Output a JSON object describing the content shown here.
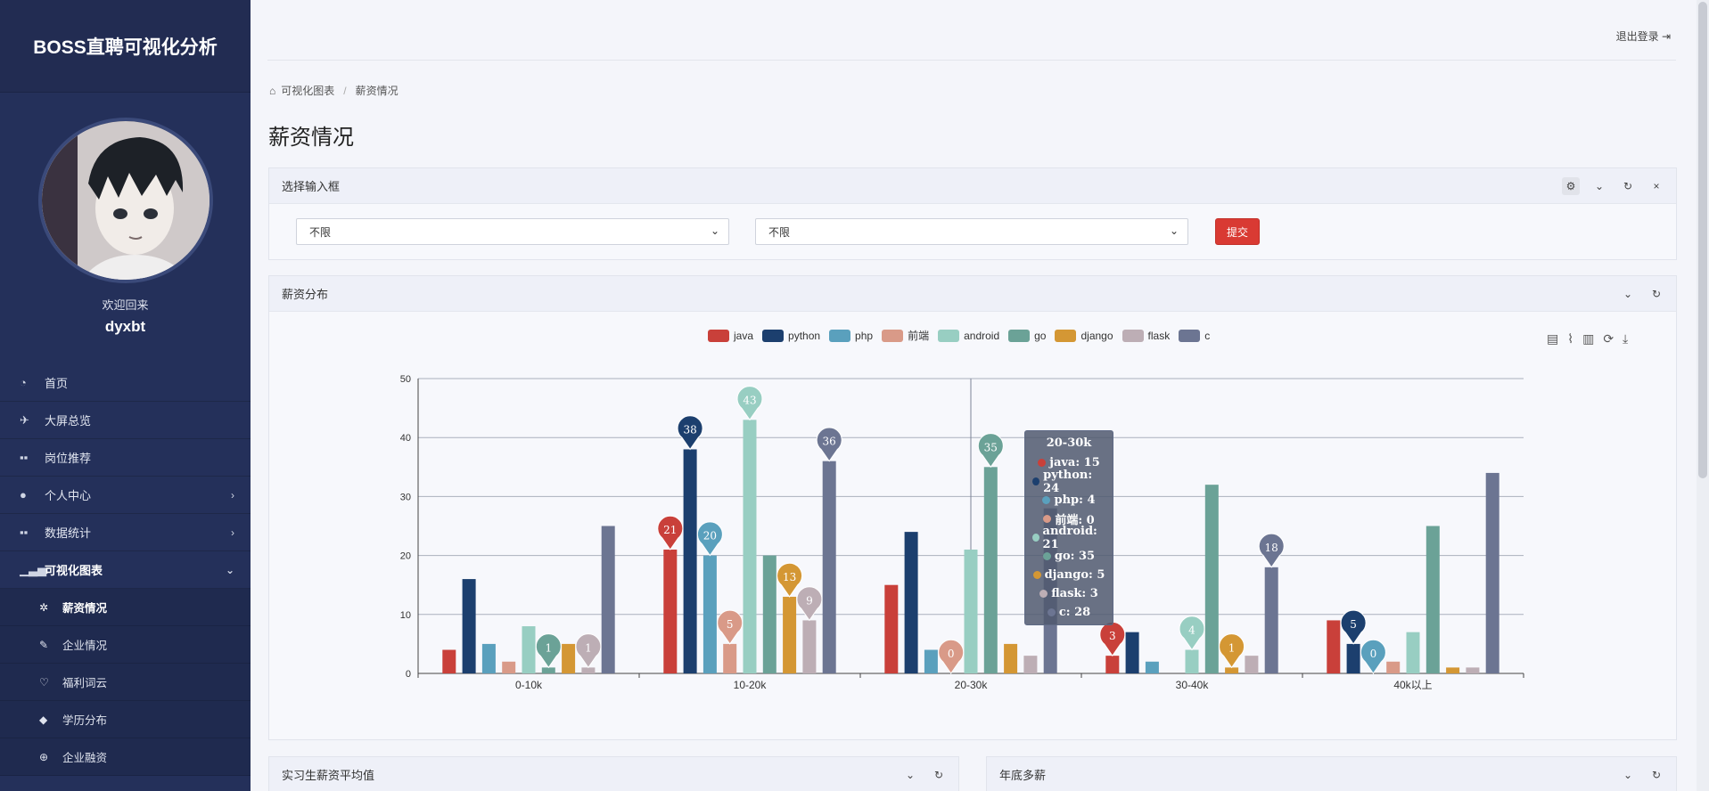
{
  "sidebar": {
    "brand": "BOSS直聘可视化分析",
    "welcome": "欢迎回来",
    "username": "dyxbt",
    "items": [
      {
        "label": "首页",
        "icon": "dashboard-icon"
      },
      {
        "label": "大屏总览",
        "icon": "plane-icon"
      },
      {
        "label": "岗位推荐",
        "icon": "grid-icon"
      },
      {
        "label": "个人中心",
        "icon": "user-icon"
      },
      {
        "label": "数据统计",
        "icon": "grid-icon"
      },
      {
        "label": "可视化图表",
        "icon": "bar-chart-icon"
      }
    ],
    "subitems": [
      {
        "label": "薪资情况",
        "icon": "gear-icon"
      },
      {
        "label": "企业情况",
        "icon": "feather-icon"
      },
      {
        "label": "福利词云",
        "icon": "bulb-icon"
      },
      {
        "label": "学历分布",
        "icon": "graduation-icon"
      },
      {
        "label": "企业融资",
        "icon": "globe-icon"
      }
    ]
  },
  "header": {
    "logout": "退出登录"
  },
  "breadcrumb": {
    "root": "可视化图表",
    "current": "薪资情况"
  },
  "page_title": "薪资情况",
  "filter_panel": {
    "title": "选择输入框",
    "select1_value": "不限",
    "select2_value": "不限",
    "submit_label": "提交"
  },
  "chart_panel": {
    "title": "薪资分布"
  },
  "bottom_panels": {
    "left_title": "实习生薪资平均值",
    "right_title": "年底多薪"
  },
  "tooltip": {
    "title": "20-30k",
    "rows": [
      {
        "text": "java: 15",
        "color": "#c9403a"
      },
      {
        "text": "python: 24",
        "color": "#1c3f6e"
      },
      {
        "text": "php: 4",
        "color": "#5aa0bd"
      },
      {
        "text": "前端: 0",
        "color": "#d99a88"
      },
      {
        "text": "android: 21",
        "color": "#98cec2"
      },
      {
        "text": "go: 35",
        "color": "#6ba297"
      },
      {
        "text": "django: 5",
        "color": "#d49734"
      },
      {
        "text": "flask: 3",
        "color": "#bdaeb5"
      },
      {
        "text": "c: 28",
        "color": "#6c7592"
      }
    ]
  },
  "chart_data": {
    "type": "bar",
    "categories": [
      "0-10k",
      "10-20k",
      "20-30k",
      "30-40k",
      "40k以上"
    ],
    "ylim": [
      0,
      50
    ],
    "yticks": [
      0,
      10,
      20,
      30,
      40,
      50
    ],
    "legend_position": "top-center",
    "grid": true,
    "series": [
      {
        "name": "java",
        "color": "#c9403a",
        "values": [
          4,
          21,
          15,
          3,
          9
        ],
        "markers": [
          1,
          3
        ]
      },
      {
        "name": "python",
        "color": "#1c3f6e",
        "values": [
          16,
          38,
          24,
          7,
          5
        ],
        "markers": [
          1,
          4
        ]
      },
      {
        "name": "php",
        "color": "#5aa0bd",
        "values": [
          5,
          20,
          4,
          2,
          0
        ],
        "markers": [
          1,
          4
        ]
      },
      {
        "name": "前端",
        "color": "#d99a88",
        "values": [
          2,
          5,
          0,
          0,
          2
        ],
        "markers": [
          1,
          2
        ]
      },
      {
        "name": "android",
        "color": "#98cec2",
        "values": [
          8,
          43,
          21,
          4,
          7
        ],
        "markers": [
          1,
          3
        ]
      },
      {
        "name": "go",
        "color": "#6ba297",
        "values": [
          1,
          20,
          35,
          32,
          25
        ],
        "markers": [
          0,
          2
        ]
      },
      {
        "name": "django",
        "color": "#d49734",
        "values": [
          5,
          13,
          5,
          1,
          1
        ],
        "markers": [
          1,
          3
        ]
      },
      {
        "name": "flask",
        "color": "#bdaeb5",
        "values": [
          1,
          9,
          3,
          3,
          1
        ],
        "markers": [
          0,
          1
        ]
      },
      {
        "name": "c",
        "color": "#6c7592",
        "values": [
          25,
          36,
          28,
          18,
          34
        ],
        "markers": [
          1,
          3
        ]
      }
    ]
  }
}
